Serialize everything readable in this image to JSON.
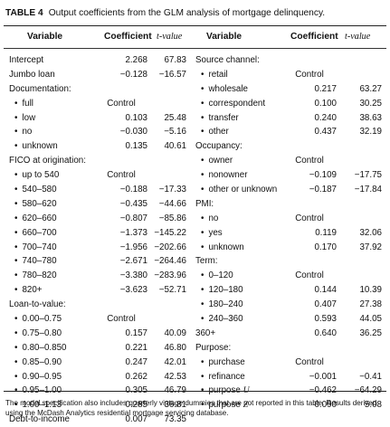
{
  "caption": {
    "label": "TABLE 4",
    "text": "Output coefficients from the GLM analysis of mortgage delinquency."
  },
  "headers": {
    "variable": "Variable",
    "coefficient": "Coefficient",
    "tvalue": "t-value"
  },
  "left_rows": [
    {
      "label": "Intercept",
      "type": "row",
      "coef": "2.268",
      "t": "67.83"
    },
    {
      "label": "Jumbo loan",
      "type": "row",
      "coef": "−0.128",
      "t": "−16.57"
    },
    {
      "label": "Documentation:",
      "type": "group",
      "coef": "",
      "t": ""
    },
    {
      "label": "full",
      "type": "bullet",
      "coef": "Control",
      "t": ""
    },
    {
      "label": "low",
      "type": "bullet",
      "coef": "0.103",
      "t": "25.48"
    },
    {
      "label": "no",
      "type": "bullet",
      "coef": "−0.030",
      "t": "−5.16"
    },
    {
      "label": "unknown",
      "type": "bullet",
      "coef": "0.135",
      "t": "40.61"
    },
    {
      "label": "FICO at origination:",
      "type": "group",
      "coef": "",
      "t": ""
    },
    {
      "label": "up to 540",
      "type": "bullet",
      "coef": "Control",
      "t": ""
    },
    {
      "label": "540–580",
      "type": "bullet",
      "coef": "−0.188",
      "t": "−17.33"
    },
    {
      "label": "580–620",
      "type": "bullet",
      "coef": "−0.435",
      "t": "−44.66"
    },
    {
      "label": "620–660",
      "type": "bullet",
      "coef": "−0.807",
      "t": "−85.86"
    },
    {
      "label": "660–700",
      "type": "bullet",
      "coef": "−1.373",
      "t": "−145.22"
    },
    {
      "label": "700–740",
      "type": "bullet",
      "coef": "−1.956",
      "t": "−202.66"
    },
    {
      "label": "740–780",
      "type": "bullet",
      "coef": "−2.671",
      "t": "−264.46"
    },
    {
      "label": "780–820",
      "type": "bullet",
      "coef": "−3.380",
      "t": "−283.96"
    },
    {
      "label": "820+",
      "type": "bullet",
      "coef": "−3.623",
      "t": "−52.71"
    },
    {
      "label": "Loan-to-value:",
      "type": "group",
      "coef": "",
      "t": ""
    },
    {
      "label": "0.00–0.75",
      "type": "bullet",
      "coef": "Control",
      "t": ""
    },
    {
      "label": "0.75–0.80",
      "type": "bullet",
      "coef": "0.157",
      "t": "40.09"
    },
    {
      "label": "0.80–0.850",
      "type": "bullet",
      "coef": "0.221",
      "t": "46.80"
    },
    {
      "label": "0.85–0.90",
      "type": "bullet",
      "coef": "0.247",
      "t": "42.01"
    },
    {
      "label": "0.90–0.95",
      "type": "bullet",
      "coef": "0.262",
      "t": "42.53"
    },
    {
      "label": "0.95–1.00",
      "type": "bullet",
      "coef": "0.305",
      "t": "46.79"
    },
    {
      "label": "1.00–1.13",
      "type": "bullet",
      "coef": "0.285",
      "t": "36.81"
    },
    {
      "label": "Debt-to-income",
      "type": "row",
      "coef": "0.007",
      "t": "73.35"
    }
  ],
  "right_rows": [
    {
      "label": "Source channel:",
      "type": "group",
      "coef": "",
      "t": ""
    },
    {
      "label": "retail",
      "type": "bullet",
      "coef": "Control",
      "t": ""
    },
    {
      "label": "wholesale",
      "type": "bullet",
      "coef": "0.217",
      "t": "63.27"
    },
    {
      "label": "correspondent",
      "type": "bullet",
      "coef": "0.100",
      "t": "30.25"
    },
    {
      "label": "transfer",
      "type": "bullet",
      "coef": "0.240",
      "t": "38.63"
    },
    {
      "label": "other",
      "type": "bullet",
      "coef": "0.437",
      "t": "32.19"
    },
    {
      "label": "Occupancy:",
      "type": "group",
      "coef": "",
      "t": ""
    },
    {
      "label": "owner",
      "type": "bullet",
      "coef": "Control",
      "t": ""
    },
    {
      "label": "nonowner",
      "type": "bullet",
      "coef": "−0.109",
      "t": "−17.75"
    },
    {
      "label": "other or unknown",
      "type": "bullet",
      "coef": "−0.187",
      "t": "−17.84"
    },
    {
      "label": "PMI:",
      "type": "group",
      "coef": "",
      "t": ""
    },
    {
      "label": "no",
      "type": "bullet",
      "coef": "Control",
      "t": ""
    },
    {
      "label": "yes",
      "type": "bullet",
      "coef": "0.119",
      "t": "32.06"
    },
    {
      "label": "unknown",
      "type": "bullet",
      "coef": "0.170",
      "t": "37.92"
    },
    {
      "label": "Term:",
      "type": "group",
      "coef": "",
      "t": ""
    },
    {
      "label": "0–120",
      "type": "bullet",
      "coef": "Control",
      "t": ""
    },
    {
      "label": "120–180",
      "type": "bullet",
      "coef": "0.144",
      "t": "10.39"
    },
    {
      "label": "180–240",
      "type": "bullet",
      "coef": "0.407",
      "t": "27.38"
    },
    {
      "label": "240–360",
      "type": "bullet",
      "coef": "0.593",
      "t": "44.05"
    },
    {
      "label": "360+",
      "type": "row",
      "coef": "0.640",
      "t": "36.25"
    },
    {
      "label": "Purpose:",
      "type": "group",
      "coef": "",
      "t": ""
    },
    {
      "label": "purchase",
      "type": "bullet",
      "coef": "Control",
      "t": ""
    },
    {
      "label": "refinance",
      "type": "bullet",
      "coef": "−0.001",
      "t": "−0.41"
    },
    {
      "label": "purpose ",
      "var": "U",
      "type": "bullet",
      "coef": "−0.462",
      "t": "−64.29"
    },
    {
      "label": "purpose ",
      "var": "Z",
      "type": "bullet",
      "coef": "0.090",
      "t": "5.08"
    }
  ],
  "note": "The model specification also includes quarterly vintage dummies that are not reported in this table. Results derived using the McDash Analytics residential mortgage servicing database."
}
